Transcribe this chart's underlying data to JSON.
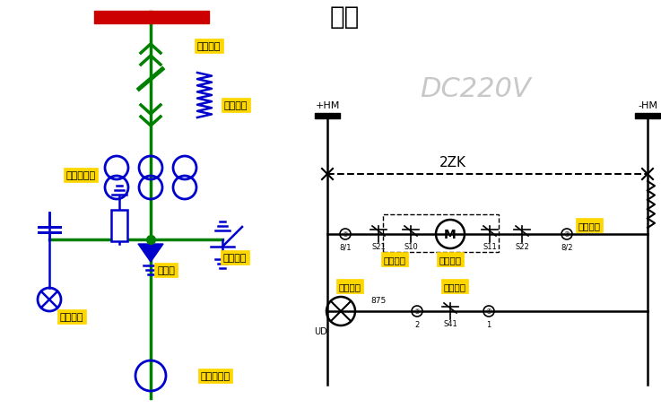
{
  "bg_color": "#ffffff",
  "gc": "#008000",
  "bc": "#0000CD",
  "bk": "#000000",
  "rc": "#CC0000",
  "yellow": "#FFD700",
  "title": "储能",
  "dc_label": "DC220V",
  "zk_label": "2ZK",
  "hm_pos": "+HM",
  "hm_neg": "-HM",
  "label_chuneng_tanhuang": "储能弹簧",
  "label_fenxian_tanhuang": "分闸弹簧",
  "label_dianliu_huganqi": "电流互感器",
  "label_leiqiqi": "避雷器",
  "label_jiedikaigu": "接地开关",
  "label_daidianzhanshi": "带电显示",
  "label_lingxu_huganqi": "零序互感器",
  "label_chuneng_jiedian": "储能接点",
  "label_chuneng_dianji": "储能电机",
  "label_hangkong_chatou": "航空插头",
  "label_chuneng_zhishi": "储能指示",
  "label_chuneng_jiedian2": "储能接点"
}
